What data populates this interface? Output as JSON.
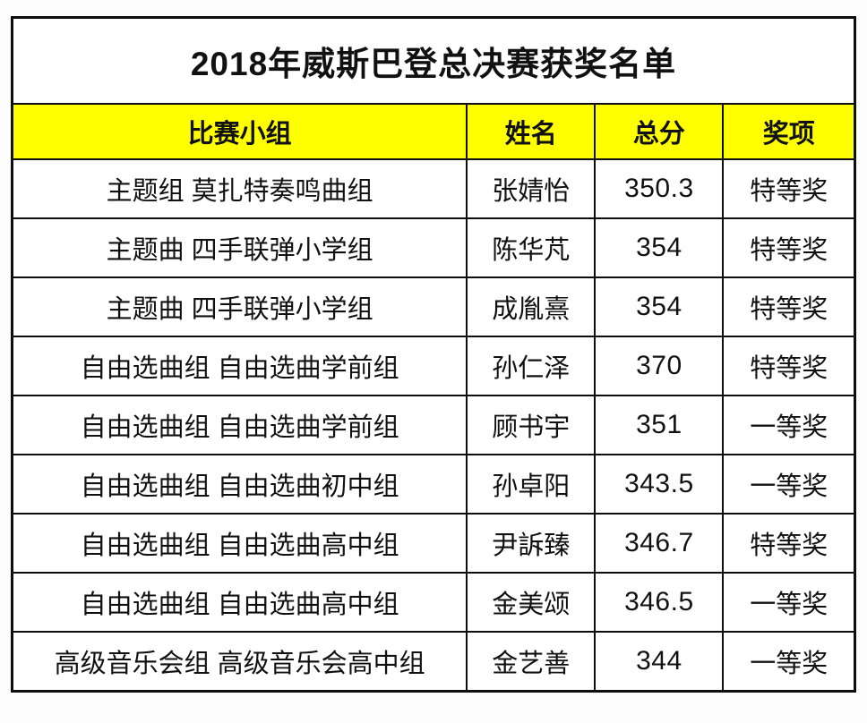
{
  "colors": {
    "header_background": "#ffff00",
    "border": "#0d0d0d",
    "text": "#111111",
    "page_background": "#fdfdfd"
  },
  "table": {
    "title": "2018年威斯巴登总决赛获奖名单",
    "header": {
      "group": "比赛小组",
      "name": "姓名",
      "score": "总分",
      "award": "奖项"
    },
    "rows": [
      {
        "group": "主题组 莫扎特奏鸣曲组",
        "name": "张婧怡",
        "score": "350.3",
        "award": "特等奖"
      },
      {
        "group": "主题曲 四手联弹小学组",
        "name": "陈华芃",
        "score": "354",
        "award": "特等奖"
      },
      {
        "group": "主题曲 四手联弹小学组",
        "name": "成胤熹",
        "score": "354",
        "award": "特等奖"
      },
      {
        "group": "自由选曲组 自由选曲学前组",
        "name": "孙仁泽",
        "score": "370",
        "award": "特等奖"
      },
      {
        "group": "自由选曲组 自由选曲学前组",
        "name": "顾书宇",
        "score": "351",
        "award": "一等奖"
      },
      {
        "group": "自由选曲组 自由选曲初中组",
        "name": "孙卓阳",
        "score": "343.5",
        "award": "一等奖"
      },
      {
        "group": "自由选曲组 自由选曲高中组",
        "name": "尹訴臻",
        "score": "346.7",
        "award": "特等奖"
      },
      {
        "group": "自由选曲组 自由选曲高中组",
        "name": "金美颂",
        "score": "346.5",
        "award": "一等奖"
      },
      {
        "group": "高级音乐会组 高级音乐会高中组",
        "name": "金艺善",
        "score": "344",
        "award": "一等奖"
      }
    ]
  }
}
